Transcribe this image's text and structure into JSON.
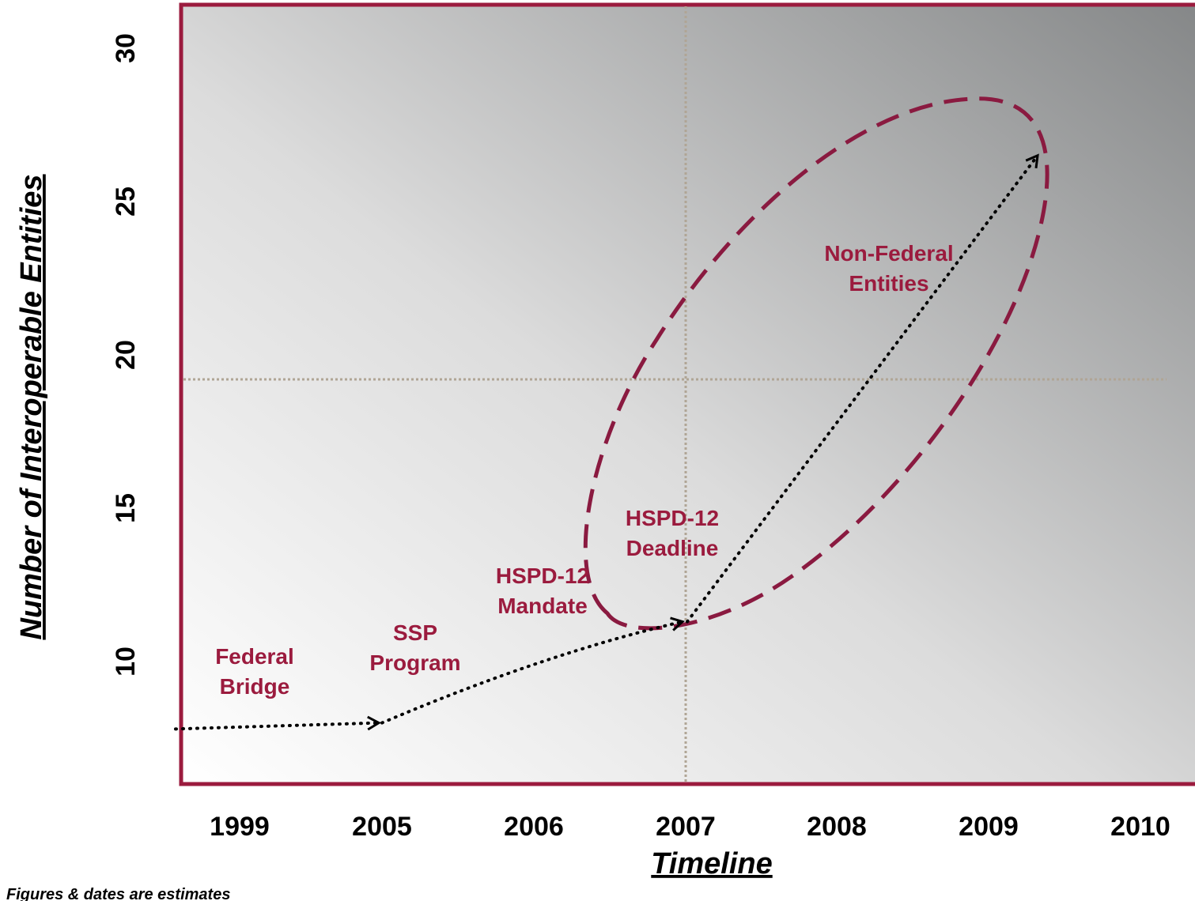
{
  "chart_data": {
    "type": "line",
    "categories": [
      "1999",
      "2005",
      "2006",
      "2007",
      "2008",
      "2009",
      "2010"
    ],
    "ylabel": "Number of Interoperable Entities",
    "xlabel": "Timeline",
    "yticks": [
      "10",
      "15",
      "20",
      "25",
      "30"
    ],
    "ylim": [
      5,
      32
    ],
    "grid": "dotted crosshair at 2007 and 20",
    "series": [
      {
        "points": [
          {
            "x": "1999",
            "y": 7.8
          },
          {
            "x": "2005",
            "y": 8.0
          },
          {
            "x": "2007",
            "y": 11.3
          },
          {
            "x": "2009",
            "y": 26.5
          }
        ]
      }
    ],
    "annotations": [
      {
        "lines": [
          "Federal",
          "Bridge"
        ]
      },
      {
        "lines": [
          "SSP",
          "Program"
        ]
      },
      {
        "lines": [
          "HSPD-12",
          "Mandate"
        ]
      },
      {
        "lines": [
          "HSPD-12",
          "Deadline"
        ]
      },
      {
        "lines": [
          "Non-Federal",
          "Entities"
        ]
      }
    ],
    "highlight_region": "dashed ellipse around 2007-2009 growth",
    "footnote": "Figures & dates are estimates",
    "colors": {
      "frame": "#9b1b3e",
      "annotation": "#9b1b3e",
      "ellipse": "#8a1a40",
      "arrow": "#000000",
      "grid": "#b0a595",
      "gradient_light": "#ffffff",
      "gradient_dark": "#858788"
    }
  }
}
